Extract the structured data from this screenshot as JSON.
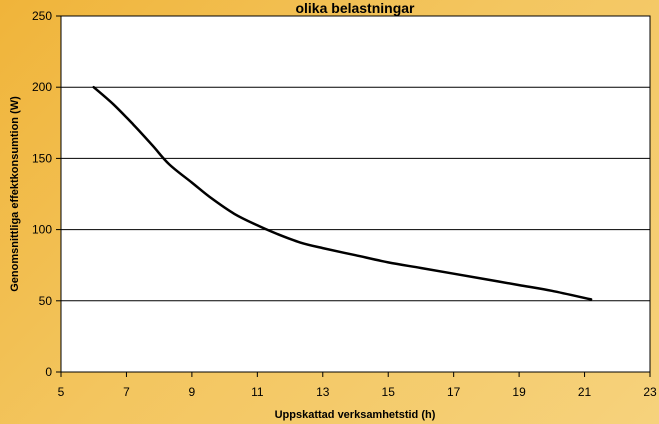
{
  "chart_data": {
    "type": "line",
    "title": "olika belastningar",
    "xlabel": "Uppskattad verksamhetstid (h)",
    "ylabel": "Genomsnittliga effektkonsumtion (W)",
    "xlim": [
      5,
      23
    ],
    "ylim": [
      0,
      250
    ],
    "x_ticks": [
      5,
      7,
      9,
      11,
      13,
      15,
      17,
      19,
      21,
      23
    ],
    "y_ticks": [
      0,
      50,
      100,
      150,
      200,
      250
    ],
    "grid": "horizontal",
    "line_color": "#000000",
    "plot_background": "#ffffff",
    "series": [
      {
        "x": [
          6.0,
          6.6,
          7.2,
          7.8,
          8.3,
          9.0,
          9.6,
          10.3,
          11.0,
          11.6,
          12.3,
          13.0,
          14.0,
          15.0,
          16.0,
          17.0,
          18.0,
          19.0,
          20.0,
          21.2
        ],
        "y": [
          200,
          188,
          174,
          159,
          146,
          133,
          122,
          111,
          103,
          97,
          91,
          87,
          82,
          77,
          73,
          69,
          65,
          61,
          57,
          51
        ]
      }
    ]
  }
}
